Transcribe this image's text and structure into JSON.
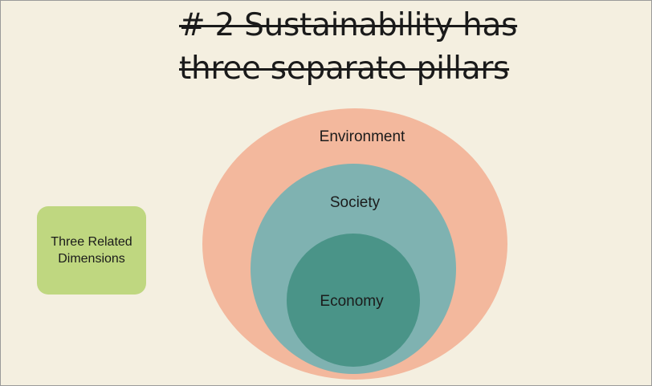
{
  "title": {
    "line1": "# 2 Sustainability has",
    "line2": "three separate pillars"
  },
  "side_box": {
    "label": "Three Related Dimensions",
    "color": "#bfd780"
  },
  "diagram": {
    "outer": {
      "label": "Environment",
      "color": "#f3b89d"
    },
    "middle": {
      "label": "Society",
      "color": "#7fb2b1"
    },
    "inner": {
      "label": "Economy",
      "color": "#4a9488"
    }
  }
}
